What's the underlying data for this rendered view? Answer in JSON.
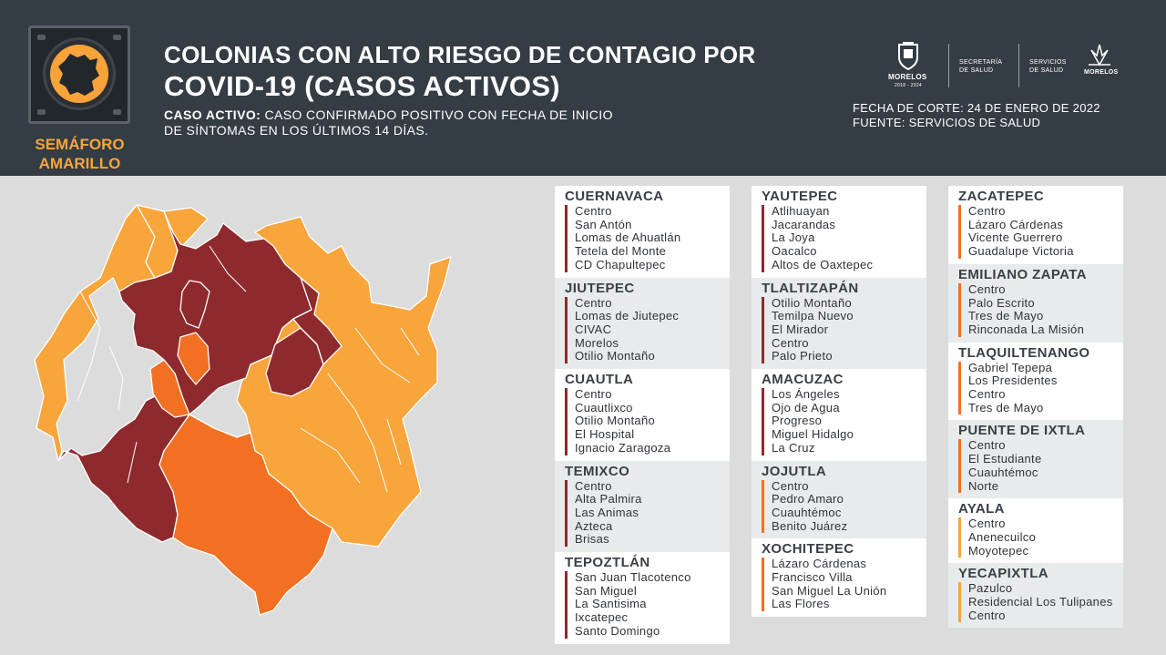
{
  "semaforo": {
    "line1": "SEMÁFORO",
    "line2": "AMARILLO",
    "icon": "traffic-light-icon"
  },
  "title": {
    "line1": "COLONIAS CON ALTO RIESGO DE CONTAGIO POR",
    "line2": "COVID-19 (CASOS ACTIVOS)"
  },
  "definition": {
    "label": "CASO ACTIVO:",
    "text": " CASO CONFIRMADO POSITIVO CON FECHA DE INICIO DE SÍNTOMAS EN LOS ÚLTIMOS 14 DÍAS."
  },
  "logos": {
    "morelos": "MORELOS",
    "morelos_years": "2018 - 2024",
    "secretaria_l1": "SECRETARÍA",
    "secretaria_l2": "DE SALUD",
    "servicios_l1": "SERVICIOS",
    "servicios_l2": "DE SALUD",
    "morelos2": "MORELOS"
  },
  "meta": {
    "fecha": "FECHA DE CORTE: 24 DE ENERO DE 2022",
    "fuente": "FUENTE: SERVICIOS DE SALUD"
  },
  "colors": {
    "header": "#343c44",
    "dark_red": "#8e2a2d",
    "orange": "#f27021",
    "yellow": "#f8a53b",
    "background": "#dcdcdc"
  },
  "municipios": [
    {
      "name": "CUERNAVACA",
      "risk": "red",
      "colonias": [
        "Centro",
        "San Antón",
        "Lomas de Ahuatlán",
        "Tetela del Monte",
        "CD Chapultepec"
      ]
    },
    {
      "name": "JIUTEPEC",
      "risk": "red",
      "colonias": [
        "Centro",
        "Lomas de Jiutepec",
        "CIVAC",
        "Morelos",
        "Otilio Montaño"
      ]
    },
    {
      "name": "CUAUTLA",
      "risk": "red",
      "colonias": [
        "Centro",
        "Cuautlixco",
        "Otilio Montaño",
        "El Hospital",
        "Ignacio Zaragoza"
      ]
    },
    {
      "name": "TEMIXCO",
      "risk": "red",
      "colonias": [
        "Centro",
        "Alta Palmira",
        "Las Animas",
        "Azteca",
        "Brisas"
      ]
    },
    {
      "name": "TEPOZTLÁN",
      "risk": "red",
      "colonias": [
        "San Juan Tlacotenco",
        "San Miguel",
        "La Santisima",
        "Ixcatepec",
        "Santo Domingo"
      ]
    },
    {
      "name": "YAUTEPEC",
      "risk": "red",
      "colonias": [
        "Atlihuayan",
        "Jacarandas",
        "La Joya",
        "Oacalco",
        "Altos de Oaxtepec"
      ]
    },
    {
      "name": "TLALTIZAPÁN",
      "risk": "red",
      "colonias": [
        "Otilio Montaño",
        "Temilpa Nuevo",
        "El Mirador",
        "Centro",
        "Palo Prieto"
      ]
    },
    {
      "name": "AMACUZAC",
      "risk": "red",
      "colonias": [
        "Los Ángeles",
        "Ojo de Agua",
        "Progreso",
        "Miguel Hidalgo",
        "La Cruz"
      ]
    },
    {
      "name": "JOJUTLA",
      "risk": "orange",
      "colonias": [
        "Centro",
        "Pedro Amaro",
        "Cuauhtémoc",
        "Benito Juárez"
      ]
    },
    {
      "name": "XOCHITEPEC",
      "risk": "orange",
      "colonias": [
        "Lázaro Cárdenas",
        "Francisco Villa",
        "San Miguel La Unión",
        "Las Flores"
      ]
    },
    {
      "name": "ZACATEPEC",
      "risk": "orange",
      "colonias": [
        "Centro",
        "Lázaro Cárdenas",
        "Vicente Guerrero",
        "Guadalupe Victoria"
      ]
    },
    {
      "name": "EMILIANO ZAPATA",
      "risk": "orange",
      "colonias": [
        "Centro",
        "Palo Escrito",
        "Tres de Mayo",
        "Rinconada La Misión"
      ]
    },
    {
      "name": "TLAQUILTENANGO",
      "risk": "orange",
      "colonias": [
        "Gabriel Tepepa",
        "Los Presidentes",
        "Centro",
        "Tres de Mayo"
      ]
    },
    {
      "name": "PUENTE DE IXTLA",
      "risk": "orange",
      "colonias": [
        "Centro",
        "El Estudiante",
        "Cuauhtémoc",
        "Norte"
      ]
    },
    {
      "name": "AYALA",
      "risk": "yellow",
      "colonias": [
        "Centro",
        "Anenecuilco",
        "Moyotepec"
      ]
    },
    {
      "name": "YECAPIXTLA",
      "risk": "yellow",
      "colonias": [
        "Pazulco",
        "Residencial Los Tulipanes",
        "Centro"
      ]
    }
  ]
}
